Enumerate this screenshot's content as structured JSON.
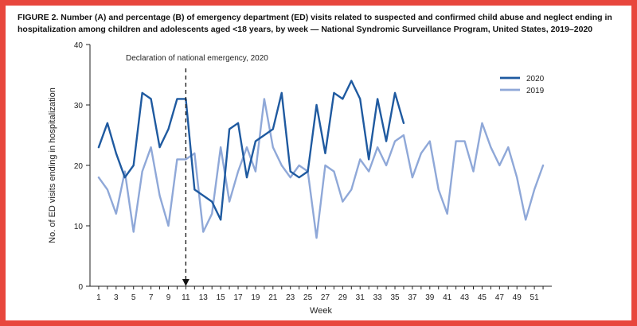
{
  "figure": {
    "title": "FIGURE 2. Number (A) and percentage (B) of emergency department (ED) visits related to suspected and confirmed child abuse and neglect ending in hospitalization among children and adolescents aged <18 years, by week — National Syndromic Surveillance Program, United States, 2019–2020",
    "border_color": "#e8473d"
  },
  "chart_data": {
    "type": "line",
    "title": "FIGURE 2. Number (A) and percentage (B) of emergency department (ED) visits related to suspected and confirmed child abuse and neglect ending in hospitalization among children and adolescents aged <18 years, by week — National Syndromic Surveillance Program, United States, 2019–2020",
    "xlabel": "Week",
    "ylabel": "No. of ED visits ending in hospitalization",
    "xlim": [
      0,
      53
    ],
    "ylim": [
      0,
      40
    ],
    "xticks": [
      1,
      3,
      5,
      7,
      9,
      11,
      13,
      15,
      17,
      19,
      21,
      23,
      25,
      27,
      29,
      31,
      33,
      35,
      37,
      39,
      41,
      43,
      45,
      47,
      49,
      51
    ],
    "yticks": [
      0,
      10,
      20,
      30,
      40
    ],
    "grid": false,
    "legend_position": "top-right",
    "annotation": {
      "label": "Declaration of national emergency, 2020",
      "x": 11
    },
    "series": [
      {
        "name": "2020",
        "color": "#1f5aa0",
        "x": [
          1,
          2,
          3,
          4,
          5,
          6,
          7,
          8,
          9,
          10,
          11,
          12,
          13,
          14,
          15,
          16,
          17,
          18,
          19,
          20,
          21,
          22,
          23,
          24,
          25,
          26,
          27,
          28,
          29,
          30,
          31,
          32,
          33,
          34,
          35,
          36
        ],
        "values": [
          23,
          27,
          22,
          18,
          20,
          32,
          31,
          23,
          26,
          31,
          31,
          16,
          15,
          14,
          11,
          26,
          27,
          18,
          24,
          25,
          26,
          32,
          19,
          18,
          19,
          30,
          22,
          32,
          31,
          34,
          31,
          21,
          31,
          24,
          32,
          27
        ]
      },
      {
        "name": "2019",
        "color": "#8fa8d8",
        "x": [
          1,
          2,
          3,
          4,
          5,
          6,
          7,
          8,
          9,
          10,
          11,
          12,
          13,
          14,
          15,
          16,
          17,
          18,
          19,
          20,
          21,
          22,
          23,
          24,
          25,
          26,
          27,
          28,
          29,
          30,
          31,
          32,
          33,
          34,
          35,
          36,
          37,
          38,
          39,
          40,
          41,
          42,
          43,
          44,
          45,
          46,
          47,
          48,
          49,
          50,
          51,
          52
        ],
        "values": [
          18,
          16,
          12,
          19,
          9,
          19,
          23,
          15,
          10,
          21,
          21,
          22,
          9,
          12,
          23,
          14,
          19,
          23,
          19,
          31,
          23,
          20,
          18,
          20,
          19,
          8,
          20,
          19,
          14,
          16,
          21,
          19,
          23,
          20,
          24,
          25,
          18,
          22,
          24,
          16,
          12,
          24,
          24,
          19,
          27,
          23,
          20,
          23,
          18,
          11,
          16,
          20
        ]
      }
    ]
  }
}
